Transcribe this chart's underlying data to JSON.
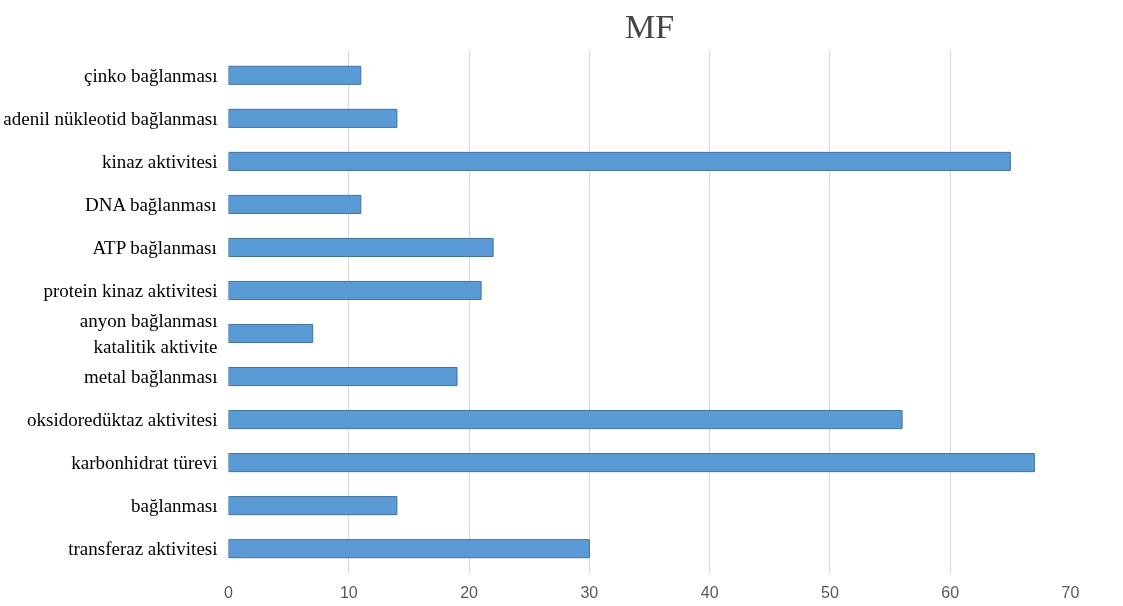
{
  "chart_data": {
    "type": "bar",
    "orientation": "horizontal",
    "title": "MF",
    "categories": [
      "çinko bağlanması",
      "adenil nükleotid bağlanması",
      "kinaz aktivitesi",
      "DNA bağlanması",
      "ATP bağlanması",
      "protein kinaz aktivitesi",
      "anyon bağlanması\nkatalitik aktivite",
      "metal bağlanması",
      "oksidoredüktaz aktivitesi",
      "karbonhidrat türevi",
      "bağlanması",
      "transferaz aktivitesi"
    ],
    "values": [
      11,
      14,
      65,
      11,
      22,
      21,
      7,
      19,
      56,
      67,
      14,
      30
    ],
    "color": "#5b9bd5",
    "xlim": [
      0,
      70
    ],
    "xticks": [
      0,
      10,
      20,
      30,
      40,
      50,
      60,
      70
    ],
    "grid": "x"
  }
}
